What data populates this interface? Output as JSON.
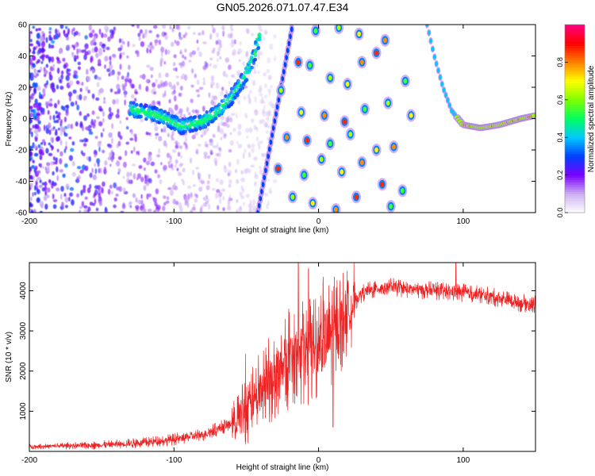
{
  "title": "GN05.2026.071.07.47.E34",
  "chart_data": [
    {
      "type": "heatmap",
      "title": "GN05.2026.071.07.47.E34",
      "xlabel": "Height of straight line (km)",
      "ylabel": "Frequency (Hz)",
      "xlim": [
        -200,
        150
      ],
      "ylim": [
        -60,
        60
      ],
      "xticks": [
        -200,
        -100,
        0,
        100
      ],
      "yticks": [
        -60,
        -40,
        -20,
        0,
        20,
        40,
        60
      ],
      "colorbar": {
        "label": "Normalized spectral amplitude",
        "range": [
          0.0,
          1.0
        ],
        "ticks": [
          0.0,
          0.2,
          0.4,
          0.6,
          0.8
        ],
        "colors": [
          "#ffffff",
          "#ccb0f0",
          "#7a00ff",
          "#0040ff",
          "#00c8ff",
          "#00ff60",
          "#80ff00",
          "#ffff00",
          "#ff8000",
          "#ff0000",
          "#ff0080"
        ]
      },
      "ridge": {
        "description": "diffuse chirped head echo",
        "points": [
          [
            -130,
            6
          ],
          [
            -110,
            2
          ],
          [
            -95,
            -5
          ],
          [
            -80,
            -2
          ],
          [
            -70,
            4
          ],
          [
            -60,
            14
          ],
          [
            -50,
            28
          ],
          [
            -44,
            42
          ],
          [
            -40,
            56
          ]
        ]
      },
      "right_arc": {
        "points": [
          [
            75,
            60
          ],
          [
            80,
            40
          ],
          [
            86,
            20
          ],
          [
            92,
            5
          ],
          [
            100,
            -4
          ],
          [
            112,
            -6
          ],
          [
            125,
            -4
          ],
          [
            140,
            0
          ],
          [
            150,
            2
          ]
        ]
      },
      "left_diagonal": {
        "points": [
          [
            -42,
            -60
          ],
          [
            -38,
            -40
          ],
          [
            -34,
            -20
          ],
          [
            -30,
            0
          ],
          [
            -26,
            20
          ],
          [
            -22,
            40
          ],
          [
            -18,
            60
          ]
        ]
      },
      "spots": [
        [
          -2,
          56
        ],
        [
          14,
          58
        ],
        [
          28,
          54
        ],
        [
          46,
          50
        ],
        [
          -14,
          36
        ],
        [
          -6,
          34
        ],
        [
          8,
          26
        ],
        [
          20,
          22
        ],
        [
          30,
          36
        ],
        [
          40,
          42
        ],
        [
          60,
          24
        ],
        [
          -26,
          18
        ],
        [
          -12,
          4
        ],
        [
          4,
          2
        ],
        [
          18,
          -2
        ],
        [
          32,
          6
        ],
        [
          48,
          10
        ],
        [
          64,
          2
        ],
        [
          -22,
          -12
        ],
        [
          -8,
          -14
        ],
        [
          8,
          -16
        ],
        [
          22,
          -10
        ],
        [
          40,
          -20
        ],
        [
          52,
          -18
        ],
        [
          -28,
          -32
        ],
        [
          -10,
          -36
        ],
        [
          2,
          -26
        ],
        [
          16,
          -34
        ],
        [
          30,
          -28
        ],
        [
          44,
          -42
        ],
        [
          58,
          -46
        ],
        [
          -18,
          -50
        ],
        [
          -4,
          -54
        ],
        [
          12,
          -58
        ],
        [
          26,
          -50
        ],
        [
          50,
          -56
        ]
      ]
    },
    {
      "type": "line",
      "xlabel": "Height of straight line (km)",
      "ylabel": "SNR (10 * v/v)",
      "xlim": [
        -200,
        150
      ],
      "ylim": [
        0,
        4700
      ],
      "xticks": [
        -200,
        -100,
        0,
        100
      ],
      "yticks": [
        1000,
        2000,
        3000,
        4000
      ],
      "color": "#ee2222",
      "series": [
        {
          "name": "SNR",
          "x": [
            -200,
            -150,
            -120,
            -100,
            -80,
            -60,
            -50,
            -40,
            -30,
            -20,
            -10,
            0,
            10,
            20,
            30,
            40,
            50,
            60,
            80,
            100,
            120,
            140,
            150
          ],
          "y": [
            120,
            160,
            220,
            300,
            420,
            700,
            1000,
            1500,
            1900,
            2300,
            2500,
            2700,
            2900,
            3500,
            3950,
            4050,
            4100,
            4050,
            4000,
            3950,
            3850,
            3700,
            3650
          ],
          "spikes": [
            [
              -14,
              4700
            ],
            [
              -7,
              4550
            ],
            [
              10,
              600
            ],
            [
              95,
              4700
            ]
          ]
        }
      ]
    }
  ]
}
